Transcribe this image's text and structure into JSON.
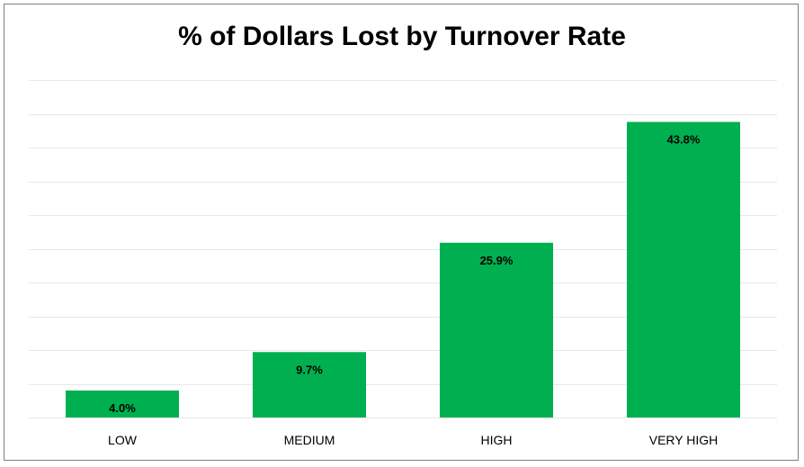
{
  "chart_data": {
    "type": "bar",
    "title": "% of Dollars Lost by Turnover Rate",
    "categories": [
      "LOW",
      "MEDIUM",
      "HIGH",
      "VERY HIGH"
    ],
    "values": [
      4.0,
      9.7,
      25.9,
      43.8
    ],
    "data_labels": [
      "4.0%",
      "9.7%",
      "25.9%",
      "43.8%"
    ],
    "ylim": [
      0,
      50
    ],
    "grid": true,
    "bar_color": "#00B050",
    "grid_color": "#e8e8e8",
    "xlabel": "",
    "ylabel": ""
  }
}
